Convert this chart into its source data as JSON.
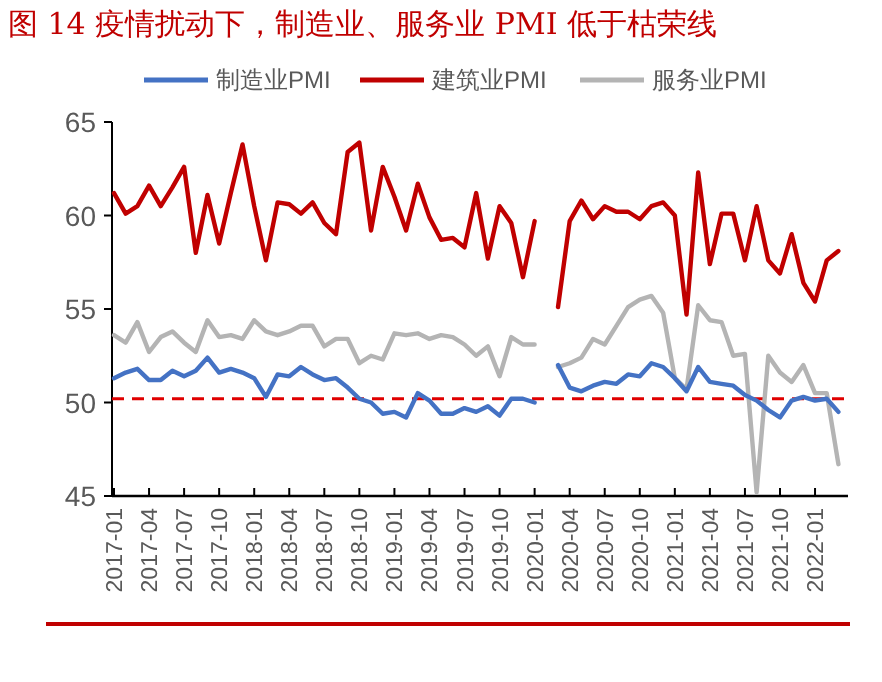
{
  "chart_data": {
    "type": "line",
    "title": "图 14 疫情扰动下，制造业、服务业 PMI 低于枯荣线",
    "categories": [
      "2017-01",
      null,
      null,
      "2017-04",
      null,
      null,
      "2017-07",
      null,
      null,
      "2017-10",
      null,
      null,
      "2018-01",
      null,
      null,
      "2018-04",
      null,
      null,
      "2018-07",
      null,
      null,
      "2018-10",
      null,
      null,
      "2019-01",
      null,
      null,
      "2019-04",
      null,
      null,
      "2019-07",
      null,
      null,
      "2019-10",
      null,
      null,
      "2020-01",
      null,
      null,
      "2020-04",
      null,
      null,
      "2020-07",
      null,
      null,
      "2020-10",
      null,
      null,
      "2021-01",
      null,
      null,
      "2021-04",
      null,
      null,
      "2021-07",
      null,
      null,
      "2021-10",
      null,
      null,
      "2022-01",
      null,
      null
    ],
    "series": [
      {
        "name": "制造业PMI",
        "color": "#4472c4",
        "values": [
          51.3,
          51.6,
          51.8,
          51.2,
          51.2,
          51.7,
          51.4,
          51.7,
          52.4,
          51.6,
          51.8,
          51.6,
          51.3,
          50.3,
          51.5,
          51.4,
          51.9,
          51.5,
          51.2,
          51.3,
          50.8,
          50.2,
          50.0,
          49.4,
          49.5,
          49.2,
          50.5,
          50.1,
          49.4,
          49.4,
          49.7,
          49.5,
          49.8,
          49.3,
          50.2,
          50.2,
          50.0,
          null,
          52.0,
          50.8,
          50.6,
          50.9,
          51.1,
          51.0,
          51.5,
          51.4,
          52.1,
          51.9,
          51.3,
          50.6,
          51.9,
          51.1,
          51.0,
          50.9,
          50.4,
          50.1,
          49.6,
          49.2,
          50.1,
          50.3,
          50.1,
          50.2,
          49.5
        ]
      },
      {
        "name": "建筑业PMI",
        "color": "#c00000",
        "values": [
          61.2,
          60.1,
          60.5,
          61.6,
          60.5,
          61.5,
          62.6,
          58.0,
          61.1,
          58.5,
          61.2,
          63.8,
          60.5,
          57.6,
          60.7,
          60.6,
          60.1,
          60.7,
          59.6,
          59.0,
          63.4,
          63.9,
          59.2,
          62.6,
          61.0,
          59.2,
          61.7,
          59.9,
          58.7,
          58.8,
          58.3,
          61.2,
          57.7,
          60.5,
          59.6,
          56.7,
          59.7,
          null,
          55.1,
          59.7,
          60.8,
          59.8,
          60.5,
          60.2,
          60.2,
          59.8,
          60.5,
          60.7,
          60.0,
          54.7,
          62.3,
          57.4,
          60.1,
          60.1,
          57.6,
          60.5,
          57.6,
          56.9,
          59.0,
          56.4,
          55.4,
          57.6,
          58.1
        ]
      },
      {
        "name": "服务业PMI",
        "color": "#b4b4b4",
        "values": [
          53.6,
          53.2,
          54.3,
          52.7,
          53.5,
          53.8,
          53.2,
          52.7,
          54.4,
          53.5,
          53.6,
          53.4,
          54.4,
          53.8,
          53.6,
          53.8,
          54.1,
          54.1,
          53.0,
          53.4,
          53.4,
          52.1,
          52.5,
          52.3,
          53.7,
          53.6,
          53.7,
          53.4,
          53.6,
          53.5,
          53.1,
          52.5,
          53.0,
          51.4,
          53.5,
          53.1,
          53.1,
          null,
          51.9,
          52.1,
          52.4,
          53.4,
          53.1,
          54.1,
          55.1,
          55.5,
          55.7,
          54.8,
          51.3,
          50.7,
          55.2,
          54.4,
          54.3,
          52.5,
          52.6,
          45.2,
          52.5,
          51.6,
          51.1,
          52.0,
          50.5,
          50.5,
          46.7
        ]
      }
    ],
    "ylim": [
      45,
      65
    ],
    "yticks": [
      45,
      50,
      55,
      60,
      65
    ],
    "ref_lines": [
      {
        "axis": "y",
        "value": 50.2,
        "color": "#e00000",
        "line_style": "dashed"
      }
    ],
    "legend": "top",
    "grid": false,
    "marker": "none",
    "line_style": "solid"
  }
}
